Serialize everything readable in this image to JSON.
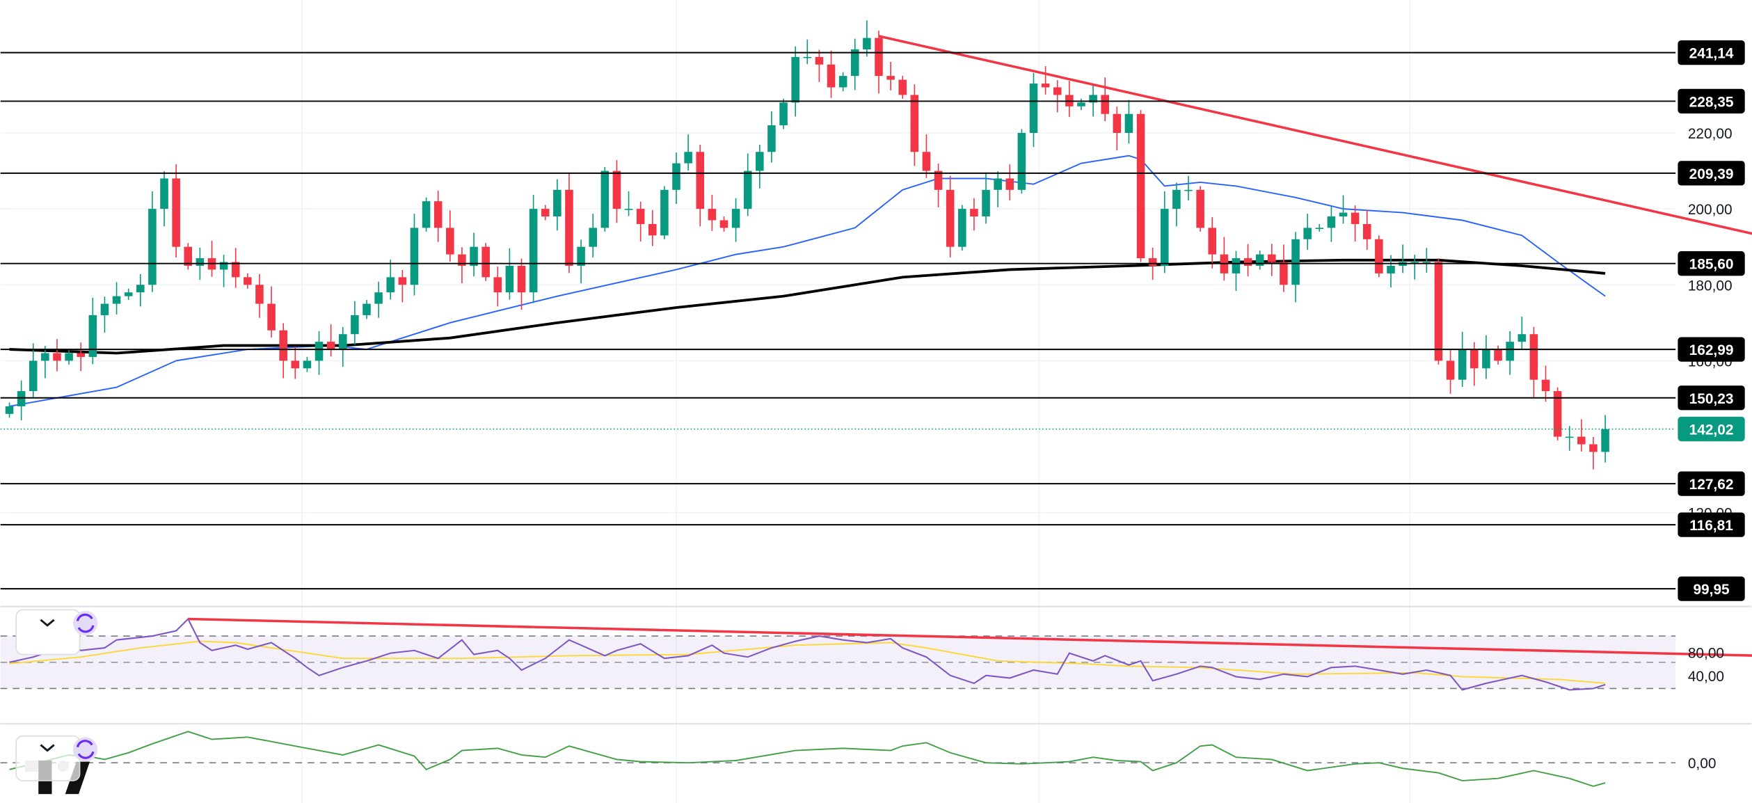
{
  "chart_data": {
    "type": "candlestick",
    "title": "",
    "colors": {
      "up": "#089981",
      "down": "#F23645",
      "ma_fast": "#2962FF",
      "ma_slow": "#000000",
      "trend": "#F23645",
      "rsi": "#7E57C2",
      "rsi_signal": "#FDD835",
      "momentum": "#43A047"
    },
    "closes": [
      148,
      152,
      160,
      162,
      160,
      162,
      161,
      172,
      175,
      177,
      178,
      180,
      200,
      208,
      190,
      185,
      187,
      184,
      186,
      182,
      180,
      175,
      168,
      160,
      158,
      160,
      165,
      163,
      167,
      172,
      175,
      178,
      182,
      180,
      195,
      202,
      195,
      188,
      185,
      190,
      182,
      178,
      185,
      178,
      200,
      198,
      205,
      185,
      190,
      195,
      210,
      200,
      200,
      196,
      193,
      205,
      212,
      215,
      200,
      197,
      195,
      200,
      210,
      215,
      222,
      228,
      240,
      240,
      238,
      232,
      235,
      242,
      245,
      235,
      234,
      230,
      215,
      210,
      205,
      190,
      200,
      198,
      205,
      208,
      205,
      220,
      233,
      232,
      230,
      227,
      228,
      230,
      225,
      220,
      225,
      187,
      185,
      200,
      205,
      205,
      195,
      188,
      183,
      187,
      185,
      188,
      186,
      180,
      192,
      195,
      195,
      198,
      199,
      196,
      192,
      183,
      185,
      186,
      186,
      186,
      160,
      155,
      163,
      158,
      163,
      160,
      165,
      167,
      155,
      152,
      140,
      140,
      138,
      136,
      142
    ],
    "first_open": 146,
    "ma_fast": [
      [
        0,
        148
      ],
      [
        9,
        153
      ],
      [
        14,
        160
      ],
      [
        20,
        163
      ],
      [
        27,
        164
      ],
      [
        30,
        163
      ],
      [
        37,
        170
      ],
      [
        46,
        177
      ],
      [
        56,
        184
      ],
      [
        61,
        188
      ],
      [
        65,
        190
      ],
      [
        71,
        195
      ],
      [
        75,
        205
      ],
      [
        78,
        208
      ],
      [
        82,
        208
      ],
      [
        86,
        206.5
      ],
      [
        90,
        212
      ],
      [
        94,
        214
      ],
      [
        95,
        213
      ],
      [
        97,
        206
      ],
      [
        100,
        207
      ],
      [
        103,
        206
      ],
      [
        108,
        203
      ],
      [
        112,
        200
      ],
      [
        117,
        199
      ],
      [
        122,
        197
      ],
      [
        127,
        193
      ],
      [
        130,
        186
      ],
      [
        134,
        177
      ]
    ],
    "ma_slow": [
      [
        0,
        163
      ],
      [
        9,
        162
      ],
      [
        18,
        164
      ],
      [
        28,
        164
      ],
      [
        37,
        166
      ],
      [
        46,
        170
      ],
      [
        56,
        174
      ],
      [
        65,
        177
      ],
      [
        75,
        182
      ],
      [
        84,
        184
      ],
      [
        94,
        185
      ],
      [
        103,
        186
      ],
      [
        112,
        186.5
      ],
      [
        120,
        186.5
      ],
      [
        127,
        185
      ],
      [
        134,
        183
      ]
    ],
    "trendline": [
      [
        73,
        245.5
      ],
      [
        147,
        193
      ]
    ],
    "price_ticks": [
      "220,00",
      "200,00",
      "180,00",
      "160,00",
      "120,00"
    ],
    "price_tick_values": [
      220,
      200,
      180,
      160,
      120
    ],
    "levels": [
      {
        "value": 241.14,
        "label": "241,14"
      },
      {
        "value": 228.35,
        "label": "228,35"
      },
      {
        "value": 209.39,
        "label": "209,39"
      },
      {
        "value": 185.6,
        "label": "185,60"
      },
      {
        "value": 162.99,
        "label": "162,99"
      },
      {
        "value": 150.23,
        "label": "150,23"
      },
      {
        "value": 127.62,
        "label": "127,62"
      },
      {
        "value": 116.81,
        "label": "116,81"
      },
      {
        "value": 99.95,
        "label": "99,95"
      }
    ],
    "last_price": {
      "value": 142.02,
      "label": "142,02"
    },
    "rsi": {
      "ticks": [
        "80,00",
        "40,00"
      ],
      "bands": [
        70,
        50,
        30
      ],
      "values": [
        [
          0,
          50
        ],
        [
          2,
          54
        ],
        [
          5,
          63
        ],
        [
          6,
          59
        ],
        [
          8,
          61
        ],
        [
          9,
          67
        ],
        [
          12,
          70
        ],
        [
          14,
          74
        ],
        [
          15,
          83
        ],
        [
          16,
          65
        ],
        [
          17,
          59
        ],
        [
          19,
          63
        ],
        [
          20,
          60
        ],
        [
          22,
          65
        ],
        [
          24,
          53
        ],
        [
          25,
          46
        ],
        [
          26,
          40
        ],
        [
          28,
          46
        ],
        [
          30,
          51
        ],
        [
          32,
          57
        ],
        [
          34,
          59
        ],
        [
          36,
          53
        ],
        [
          38,
          67
        ],
        [
          39,
          56
        ],
        [
          41,
          59
        ],
        [
          42,
          53
        ],
        [
          43,
          44
        ],
        [
          45,
          53
        ],
        [
          47,
          67
        ],
        [
          48,
          63
        ],
        [
          50,
          55
        ],
        [
          51,
          59
        ],
        [
          53,
          64
        ],
        [
          55,
          53
        ],
        [
          57,
          55
        ],
        [
          59,
          63
        ],
        [
          60,
          57
        ],
        [
          62,
          54
        ],
        [
          64,
          61
        ],
        [
          66,
          66
        ],
        [
          68,
          70
        ],
        [
          70,
          67
        ],
        [
          72,
          65
        ],
        [
          74,
          68
        ],
        [
          75,
          61
        ],
        [
          77,
          54
        ],
        [
          79,
          40
        ],
        [
          81,
          34
        ],
        [
          82,
          40
        ],
        [
          84,
          38
        ],
        [
          86,
          44
        ],
        [
          88,
          41
        ],
        [
          89,
          57
        ],
        [
          91,
          51
        ],
        [
          92,
          55
        ],
        [
          94,
          48
        ],
        [
          95,
          51
        ],
        [
          96,
          36
        ],
        [
          98,
          41
        ],
        [
          100,
          47
        ],
        [
          101,
          46
        ],
        [
          103,
          39
        ],
        [
          105,
          37
        ],
        [
          107,
          41
        ],
        [
          109,
          39
        ],
        [
          111,
          46
        ],
        [
          113,
          47
        ],
        [
          115,
          44
        ],
        [
          117,
          41
        ],
        [
          119,
          44
        ],
        [
          121,
          40
        ],
        [
          122,
          29
        ],
        [
          124,
          34
        ],
        [
          125,
          36
        ],
        [
          127,
          40
        ],
        [
          129,
          35
        ],
        [
          131,
          29
        ],
        [
          133,
          30
        ],
        [
          134,
          33
        ]
      ],
      "signal": [
        [
          0,
          49
        ],
        [
          6,
          54
        ],
        [
          11,
          61
        ],
        [
          16,
          66
        ],
        [
          19,
          65
        ],
        [
          25,
          57
        ],
        [
          28,
          53
        ],
        [
          38,
          53
        ],
        [
          47,
          55
        ],
        [
          57,
          56
        ],
        [
          66,
          63
        ],
        [
          74,
          65
        ],
        [
          77,
          61
        ],
        [
          83,
          51
        ],
        [
          90,
          49
        ],
        [
          94,
          47
        ],
        [
          100,
          46
        ],
        [
          108,
          41
        ],
        [
          118,
          42
        ],
        [
          122,
          39
        ],
        [
          130,
          37
        ],
        [
          134,
          34
        ]
      ],
      "trendline": [
        [
          15,
          83
        ],
        [
          147,
          55
        ]
      ]
    },
    "momentum": {
      "ticks": [
        "0,00"
      ],
      "values": [
        [
          0,
          -6
        ],
        [
          2,
          -1
        ],
        [
          5,
          7
        ],
        [
          7,
          5
        ],
        [
          8,
          3
        ],
        [
          10,
          9
        ],
        [
          12,
          17
        ],
        [
          15,
          28
        ],
        [
          17,
          21
        ],
        [
          20,
          23
        ],
        [
          22,
          19
        ],
        [
          24,
          15
        ],
        [
          26,
          11
        ],
        [
          28,
          7
        ],
        [
          31,
          16
        ],
        [
          34,
          6
        ],
        [
          35,
          -6
        ],
        [
          37,
          3
        ],
        [
          38,
          11
        ],
        [
          41,
          13
        ],
        [
          43,
          7
        ],
        [
          45,
          5
        ],
        [
          47,
          15
        ],
        [
          49,
          9
        ],
        [
          51,
          3
        ],
        [
          53,
          1
        ],
        [
          57,
          0
        ],
        [
          61,
          2
        ],
        [
          66,
          11
        ],
        [
          70,
          13
        ],
        [
          74,
          11
        ],
        [
          75,
          15
        ],
        [
          77,
          18
        ],
        [
          79,
          9
        ],
        [
          82,
          0
        ],
        [
          85,
          -1
        ],
        [
          89,
          1
        ],
        [
          91,
          5
        ],
        [
          93,
          2
        ],
        [
          95,
          1
        ],
        [
          96,
          -7
        ],
        [
          98,
          0
        ],
        [
          100,
          15
        ],
        [
          101,
          16
        ],
        [
          103,
          5
        ],
        [
          106,
          3
        ],
        [
          109,
          -7
        ],
        [
          113,
          -1
        ],
        [
          115,
          0
        ],
        [
          117,
          -5
        ],
        [
          120,
          -9
        ],
        [
          122,
          -16
        ],
        [
          125,
          -14
        ],
        [
          128,
          -7
        ],
        [
          131,
          -14
        ],
        [
          133,
          -21
        ],
        [
          134,
          -18
        ]
      ]
    }
  }
}
